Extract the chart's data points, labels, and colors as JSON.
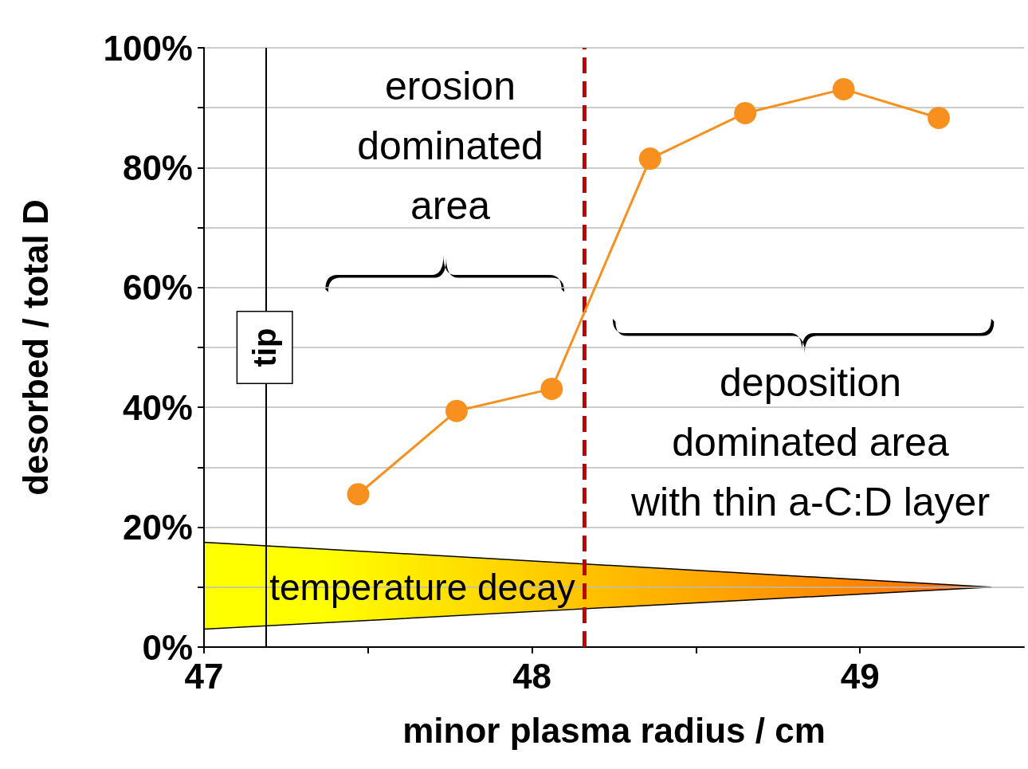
{
  "chart_data": {
    "type": "line",
    "xlabel": "minor plasma radius / cm",
    "ylabel": "desorbed / total D",
    "x": [
      47.47,
      47.77,
      48.06,
      48.36,
      48.65,
      48.95,
      49.24
    ],
    "series": [
      {
        "color": "#f7901e",
        "values": [
          25.5,
          39.4,
          43.1,
          81.5,
          89.1,
          93.1,
          88.3
        ]
      }
    ],
    "marker": "circle",
    "line_style": "solid",
    "grid": "y",
    "xlim": [
      47,
      49.5
    ],
    "xticks": [
      47,
      {
        "value": 47.5,
        "label": null
      },
      48,
      {
        "value": 48.5,
        "label": null
      },
      49
    ],
    "ylim": [
      0,
      100
    ],
    "yticks": [
      {
        "value": 0,
        "label": "0%"
      },
      {
        "value": 10,
        "label": null
      },
      {
        "value": 20,
        "label": "20%"
      },
      {
        "value": 30,
        "label": null
      },
      {
        "value": 40,
        "label": "40%"
      },
      {
        "value": 50,
        "label": null
      },
      {
        "value": 60,
        "label": "60%"
      },
      {
        "value": 70,
        "label": null
      },
      {
        "value": 80,
        "label": "80%"
      },
      {
        "value": 90,
        "label": null
      },
      {
        "value": 100,
        "label": "100%"
      }
    ],
    "ref_lines": [
      {
        "axis": "x",
        "value": 47.185,
        "label": "tip",
        "color": "#000000",
        "line_style": "solid"
      },
      {
        "axis": "x",
        "value": 48.165,
        "color": "#c00000",
        "line_style": "dashed"
      }
    ],
    "annotations": [
      "erosion\ndominated\narea",
      "deposition\ndominated area\nwith thin a-C:D layer",
      "temperature decay"
    ]
  }
}
